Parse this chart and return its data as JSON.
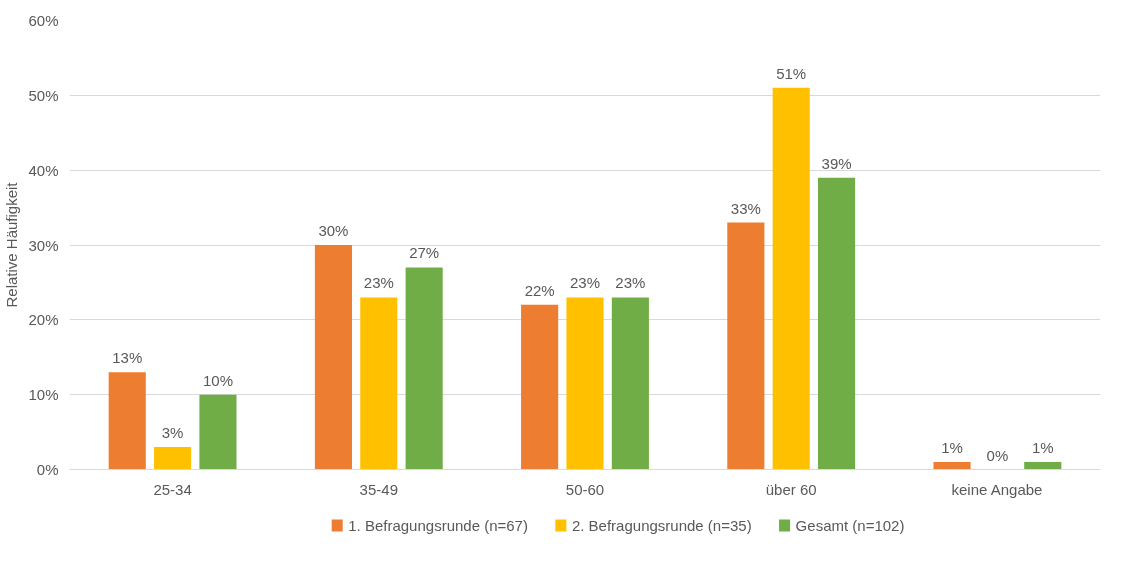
{
  "chart_data": {
    "type": "bar",
    "ylabel": "Relative Häufigkeit",
    "categories": [
      "25-34",
      "35-49",
      "50-60",
      "über 60",
      "keine Angabe"
    ],
    "series": [
      {
        "name": "1. Befragungsrunde (n=67)",
        "color": "#ed7d31",
        "values": [
          13,
          30,
          22,
          33,
          1
        ],
        "value_labels": [
          "13%",
          "30%",
          "22%",
          "33%",
          "1%"
        ]
      },
      {
        "name": "2. Befragungsrunde (n=35)",
        "color": "#ffc000",
        "values": [
          3,
          23,
          23,
          51,
          0
        ],
        "value_labels": [
          "3%",
          "23%",
          "23%",
          "51%",
          "0%"
        ]
      },
      {
        "name": "Gesamt (n=102)",
        "color": "#70ad47",
        "values": [
          10,
          27,
          23,
          39,
          1
        ],
        "value_labels": [
          "10%",
          "27%",
          "23%",
          "39%",
          "1%"
        ]
      }
    ],
    "ylim": [
      0,
      60
    ],
    "yticks": [
      {
        "value": 0,
        "label": "0%"
      },
      {
        "value": 10,
        "label": "10%"
      },
      {
        "value": 20,
        "label": "20%"
      },
      {
        "value": 30,
        "label": "30%"
      },
      {
        "value": 40,
        "label": "40%"
      },
      {
        "value": 50,
        "label": "50%"
      },
      {
        "value": 60,
        "label": "60%"
      }
    ],
    "grid": "y",
    "legend": "bottom"
  }
}
